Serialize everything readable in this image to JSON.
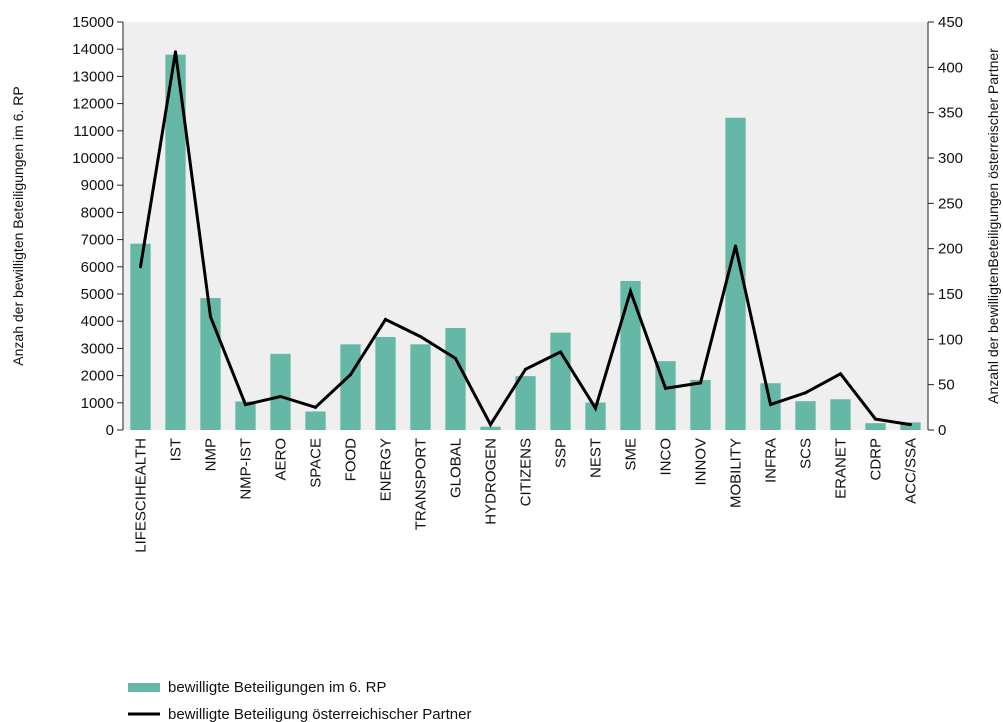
{
  "chart_data": {
    "type": "bar",
    "categories": [
      "LIFESCIHEALTH",
      "IST",
      "NMP",
      "NMP-IST",
      "AERO",
      "SPACE",
      "FOOD",
      "ENERGY",
      "TRANSPORT",
      "GLOBAL",
      "HYDROGEN",
      "CITIZENS",
      "SSP",
      "NEST",
      "SME",
      "INCO",
      "INNOV",
      "MOBILITY",
      "INFRA",
      "SCS",
      "ERANET",
      "CDRP",
      "ACC/SSA"
    ],
    "series": [
      {
        "name": "bewilligte Beteiligungen im  6. RP",
        "kind": "bar",
        "axis": "left",
        "color": "#66b8a6",
        "values": [
          6850,
          13800,
          4850,
          1050,
          2800,
          680,
          3150,
          3420,
          3150,
          3750,
          120,
          1980,
          3580,
          1010,
          5480,
          2530,
          1840,
          11480,
          1720,
          1060,
          1130,
          250,
          280
        ]
      },
      {
        "name": "bewilligte Beteiligung österreichischer Partner",
        "kind": "line",
        "axis": "right",
        "color": "#000000",
        "values": [
          180,
          417,
          125,
          28,
          37,
          25,
          61,
          122,
          103,
          79,
          6,
          67,
          86,
          24,
          153,
          46,
          52,
          203,
          28,
          41,
          62,
          12,
          6
        ]
      }
    ],
    "ylabel": "Anzah der bewilligten Beteiligungen im  6. RP",
    "ylabel_right": "Anzahl der bewilligtenBeteiligungen österreischer Partner",
    "ylim": [
      0,
      15000
    ],
    "ylim_right": [
      0,
      450
    ],
    "yticks": [
      "0",
      "1000",
      "2000",
      "3000",
      "4000",
      "5000",
      "6000",
      "7000",
      "8000",
      "9000",
      "10000",
      "11000",
      "12000",
      "13000",
      "14000",
      "15000"
    ],
    "yticks_right": [
      "0",
      "50",
      "100",
      "150",
      "200",
      "250",
      "300",
      "350",
      "400",
      "450"
    ],
    "grid": false,
    "legend_position": "bottom-left",
    "colors": {
      "plot_background": "#efefef",
      "bar": "#66b8a6",
      "line": "#000000"
    }
  }
}
